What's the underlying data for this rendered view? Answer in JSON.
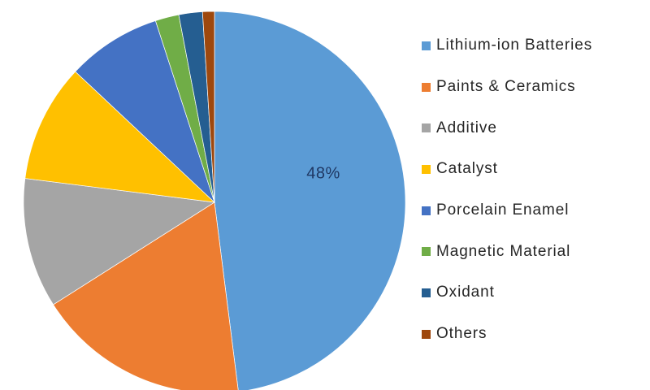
{
  "chart_data": {
    "type": "pie",
    "title": "",
    "categories": [
      "Lithium-ion Batteries",
      "Paints & Ceramics",
      "Additive",
      "Catalyst",
      "Porcelain Enamel",
      "Magnetic Material",
      "Oxidant",
      "Others"
    ],
    "values": [
      48,
      18,
      11,
      10,
      8,
      2,
      2,
      1
    ],
    "colors": [
      "#5B9BD5",
      "#ED7D31",
      "#A5A5A5",
      "#FFC000",
      "#4472C4",
      "#70AD47",
      "#255E91",
      "#9E480E"
    ],
    "unit": "%",
    "start_angle_deg": 0,
    "direction": "clockwise",
    "labeled_slice_index": 0,
    "data_label": "48%",
    "data_label_color": "#1F3864",
    "legend_position": "right",
    "legend_text_color": "#262626",
    "background": "#FFFFFF"
  }
}
